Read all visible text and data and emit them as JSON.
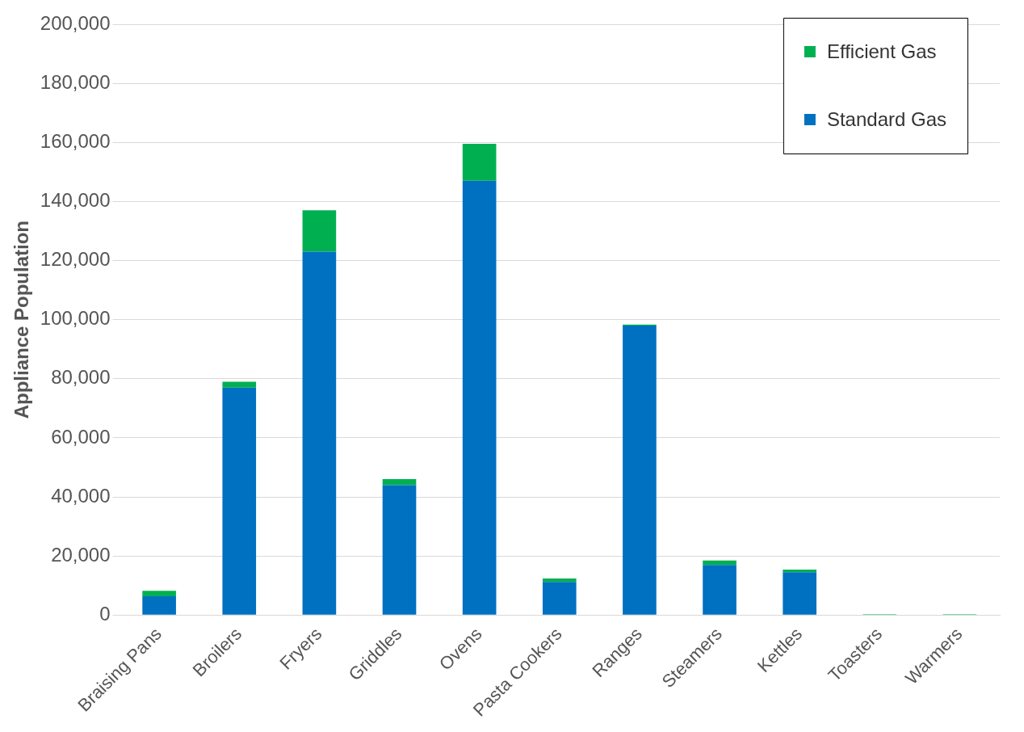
{
  "chart_data": {
    "type": "bar",
    "ylabel": "Appliance Population",
    "categories": [
      "Braising Pans",
      "Broilers",
      "Fryers",
      "Griddles",
      "Ovens",
      "Pasta Cookers",
      "Ranges",
      "Steamers",
      "Kettles",
      "Toasters",
      "Warmers"
    ],
    "series": [
      {
        "name": "Standard Gas",
        "color": "#0070c0",
        "values": [
          6400,
          77000,
          123000,
          44000,
          147000,
          11200,
          98000,
          17000,
          14500,
          0,
          0
        ]
      },
      {
        "name": "Efficient Gas",
        "color": "#00b050",
        "values": [
          1800,
          2000,
          14000,
          2000,
          12500,
          1200,
          300,
          1500,
          900,
          300,
          300
        ]
      }
    ],
    "stacked": true,
    "ylim": [
      0,
      200000
    ],
    "yticks": [
      0,
      {
        "value": 20000,
        "label": "20,000"
      },
      {
        "value": 40000,
        "label": "40,000"
      },
      {
        "value": 60000,
        "label": "60,000"
      },
      {
        "value": 80000,
        "label": "80,000"
      },
      {
        "value": 100000,
        "label": "100,000"
      },
      {
        "value": 120000,
        "label": "120,000"
      },
      {
        "value": 140000,
        "label": "140,000"
      },
      {
        "value": 160000,
        "label": "160,000"
      },
      {
        "value": 180000,
        "label": "180,000"
      },
      {
        "value": 200000,
        "label": "200,000"
      }
    ],
    "grid": "y",
    "legend": "top right"
  }
}
